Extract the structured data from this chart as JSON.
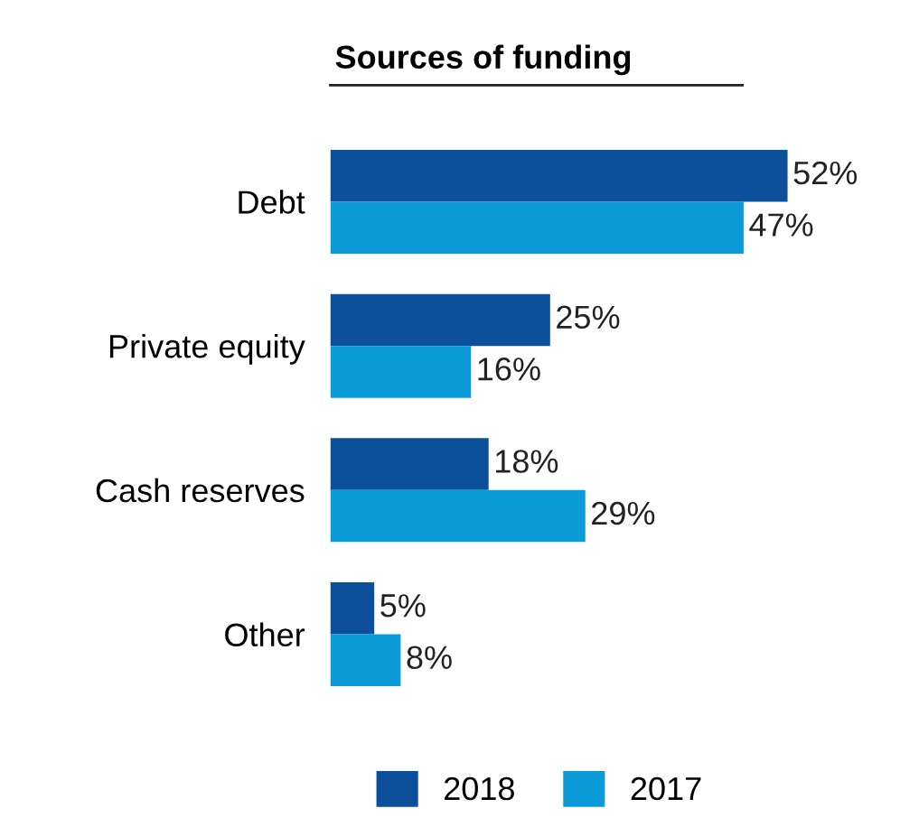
{
  "chart_data": {
    "type": "bar",
    "orientation": "horizontal",
    "title": "Sources of funding",
    "categories": [
      "Debt",
      "Private equity",
      "Cash reserves",
      "Other"
    ],
    "series": [
      {
        "name": "2018",
        "color": "#0c4f9a",
        "values": [
          52,
          25,
          18,
          5
        ],
        "value_labels": [
          "52%",
          "25%",
          "18%",
          "5%"
        ]
      },
      {
        "name": "2017",
        "color": "#0a9bd8",
        "values": [
          47,
          16,
          29,
          8
        ],
        "value_labels": [
          "47%",
          "16%",
          "29%",
          "8%"
        ]
      }
    ],
    "legend": "bottom",
    "grid": false
  }
}
